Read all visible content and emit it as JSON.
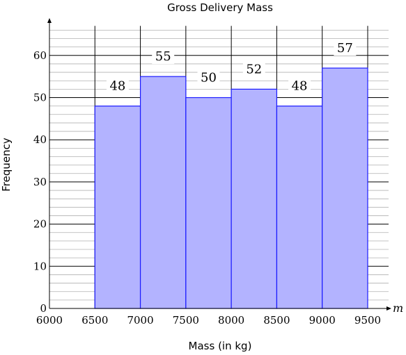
{
  "chart_data": {
    "type": "bar",
    "title": "Gross Delivery Mass",
    "xlabel": "Mass (in kg)",
    "ylabel": "Frequency",
    "axis_var": "m",
    "bins": [
      {
        "from": 6000,
        "to": 6500,
        "value": 0
      },
      {
        "from": 6500,
        "to": 7000,
        "value": 48
      },
      {
        "from": 7000,
        "to": 7500,
        "value": 55
      },
      {
        "from": 7500,
        "to": 8000,
        "value": 50
      },
      {
        "from": 8000,
        "to": 8500,
        "value": 52
      },
      {
        "from": 8500,
        "to": 9000,
        "value": 48
      },
      {
        "from": 9000,
        "to": 9500,
        "value": 57
      }
    ],
    "data_labels": [
      "48",
      "55",
      "50",
      "52",
      "48",
      "57"
    ],
    "x_ticks": [
      "6000",
      "6500",
      "7000",
      "7500",
      "8000",
      "8500",
      "9000",
      "9500"
    ],
    "y_ticks": [
      "0",
      "10",
      "20",
      "30",
      "40",
      "50",
      "60"
    ],
    "xlim": [
      6000,
      9500
    ],
    "ylim": [
      0,
      67
    ],
    "major_grid_step": 10,
    "minor_grid_step": 2,
    "grid": true,
    "bar_fill": "#b3b3ff",
    "bar_stroke": "#1a1aff"
  }
}
